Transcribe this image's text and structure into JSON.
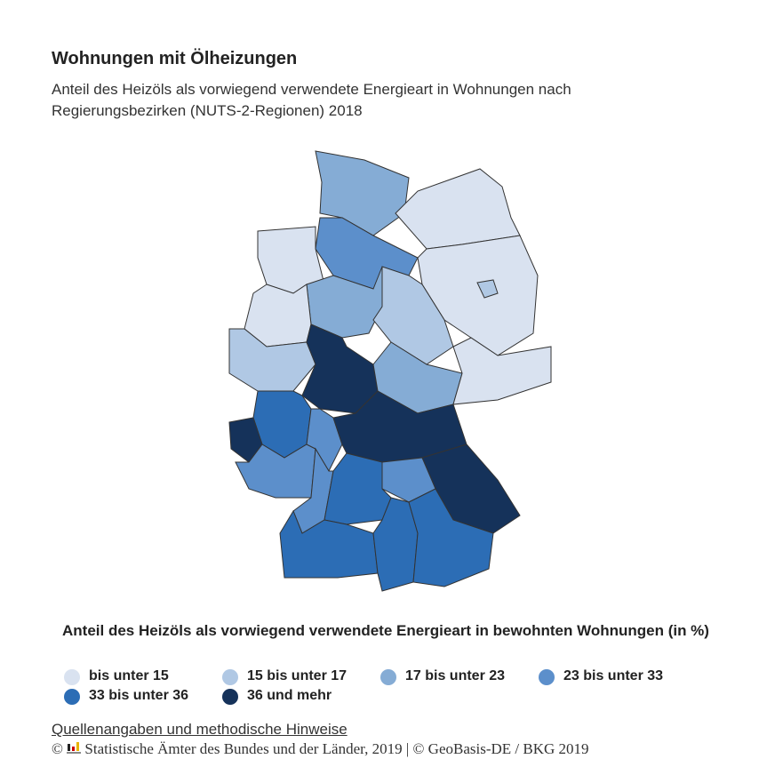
{
  "header": {
    "title": "Wohnungen mit Ölheizungen",
    "subtitle": "Anteil des Heizöls als vorwiegend verwendete Energieart in Wohnungen nach Regierungsbezirken (NUTS-2-Regionen) 2018"
  },
  "legend": {
    "title": "Anteil des Heizöls als vorwiegend verwendete Energieart in bewohnten Wohnungen (in %)",
    "items": [
      {
        "label": "bis unter 15",
        "color": "#d9e2f0"
      },
      {
        "label": "15 bis unter 17",
        "color": "#b0c8e4"
      },
      {
        "label": "17 bis unter 23",
        "color": "#85acd5"
      },
      {
        "label": "23 bis unter 33",
        "color": "#5c8fcb"
      },
      {
        "label": "33 bis unter 36",
        "color": "#2c6db5"
      },
      {
        "label": "36 und mehr",
        "color": "#15325a"
      }
    ]
  },
  "footer": {
    "link": "Quellenangaben und methodische Hinweise",
    "copyright": "Statistische Ämter des Bundes und der Länder, 2019 | © GeoBasis-DE / BKG 2019"
  }
}
